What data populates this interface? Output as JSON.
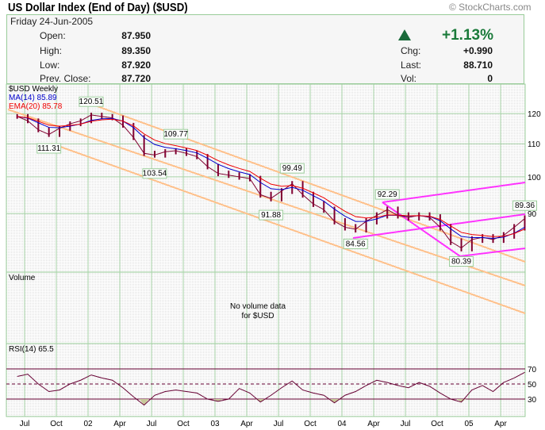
{
  "header": {
    "title": "US Dollar Index (End of Day) ($USD)",
    "copyright": "© StockCharts.com",
    "date": "Friday  24-Jun-2005",
    "open_label": "Open:",
    "open": "87.950",
    "high_label": "High:",
    "high": "89.350",
    "low_label": "Low:",
    "low": "87.920",
    "prev_label": "Prev. Close:",
    "prev": "87.720",
    "pct_change": "+1.13%",
    "chg_label": "Chg:",
    "chg": "+0.990",
    "last_label": "Last:",
    "last": "88.710",
    "vol_label": "Vol:",
    "vol": "0",
    "up_color": "#1a7a3a"
  },
  "chart_data": {
    "type": "line",
    "scale": "log",
    "grid": true,
    "price_panel": {
      "label": "$USD Weekly",
      "ma_label": "MA(14) 85.89",
      "ma_color": "#0000cc",
      "ema_label": "EMA(20) 85.78",
      "ema_color": "#ee0000",
      "bar_color": "#800030",
      "yticks": [
        120,
        110,
        100,
        90
      ],
      "ylim": [
        78,
        124
      ],
      "x": [
        "2001-06",
        "2001-07",
        "2001-08",
        "2001-09",
        "2001-10",
        "2001-11",
        "2001-12",
        "2002-01",
        "2002-02",
        "2002-03",
        "2002-04",
        "2002-05",
        "2002-06",
        "2002-07",
        "2002-08",
        "2002-09",
        "2002-10",
        "2002-11",
        "2002-12",
        "2003-01",
        "2003-02",
        "2003-03",
        "2003-04",
        "2003-05",
        "2003-06",
        "2003-07",
        "2003-08",
        "2003-09",
        "2003-10",
        "2003-11",
        "2003-12",
        "2004-01",
        "2004-02",
        "2004-03",
        "2004-04",
        "2004-05",
        "2004-06",
        "2004-07",
        "2004-08",
        "2004-09",
        "2004-10",
        "2004-11",
        "2004-12",
        "2005-01",
        "2005-02",
        "2005-03",
        "2005-04",
        "2005-05",
        "2005-06"
      ],
      "close": [
        119,
        117.5,
        114.5,
        113,
        115,
        116.5,
        117.5,
        119.5,
        119,
        118.5,
        116,
        112,
        107,
        106.5,
        107.5,
        107.8,
        107,
        106,
        103,
        101,
        100.5,
        100,
        99.5,
        95,
        94,
        96,
        98,
        95,
        92.5,
        91,
        88,
        86.5,
        86,
        88,
        89.5,
        91,
        89.5,
        89,
        89.5,
        89,
        86.5,
        83,
        81.5,
        83.5,
        84,
        83.5,
        84.5,
        86.5,
        88.7
      ],
      "annotations": [
        {
          "text": "120.51",
          "date": "2002-01",
          "price": 120.51
        },
        {
          "text": "111.31",
          "date": "2001-09",
          "price": 111.31
        },
        {
          "text": "109.77",
          "date": "2002-09",
          "price": 109.77
        },
        {
          "text": "103.54",
          "date": "2002-07",
          "price": 103.54
        },
        {
          "text": "99.49",
          "date": "2003-08",
          "price": 99.49
        },
        {
          "text": "91.88",
          "date": "2003-06",
          "price": 91.88
        },
        {
          "text": "92.29",
          "date": "2004-05",
          "price": 92.29
        },
        {
          "text": "84.56",
          "date": "2004-02",
          "price": 84.56
        },
        {
          "text": "80.39",
          "date": "2004-12",
          "price": 80.39
        },
        {
          "text": "89.36",
          "date": "2005-06",
          "price": 89.36
        }
      ],
      "channel_color": "#ffc08a",
      "pitchfork_color": "#ff33ff"
    },
    "volume_panel": {
      "label": "Volume",
      "message_line1": "No volume data",
      "message_line2": "for $USD"
    },
    "rsi_panel": {
      "label": "RSI(14)  65.5",
      "yticks": [
        70,
        50,
        30
      ],
      "line_color": "#660033",
      "fill_color": "#c8c89a",
      "values": [
        60,
        63,
        50,
        40,
        42,
        50,
        55,
        62,
        58,
        55,
        45,
        33,
        22,
        35,
        40,
        42,
        40,
        38,
        30,
        27,
        30,
        44,
        38,
        26,
        35,
        45,
        54,
        42,
        38,
        35,
        25,
        35,
        40,
        48,
        55,
        52,
        48,
        45,
        52,
        47,
        38,
        30,
        26,
        42,
        48,
        40,
        52,
        58,
        65.5
      ]
    },
    "xtick_labels": [
      "Jul",
      "Oct",
      "02",
      "Apr",
      "Jul",
      "Oct",
      "03",
      "Apr",
      "Jul",
      "Oct",
      "04",
      "Apr",
      "Jul",
      "Oct",
      "05",
      "Apr"
    ]
  }
}
